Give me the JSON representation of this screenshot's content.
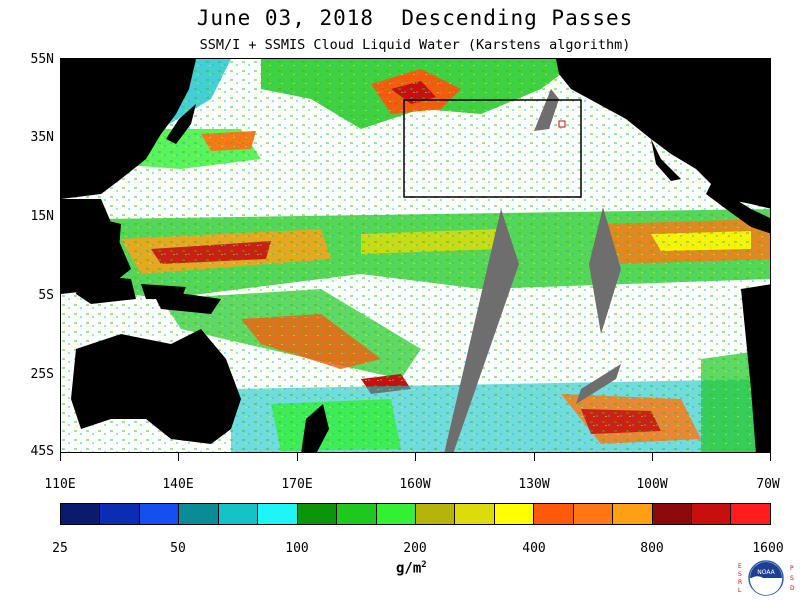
{
  "header": {
    "title": "June 03, 2018  Descending Passes",
    "subtitle": "SSM/I + SSMIS Cloud Liquid Water (Karstens algorithm)"
  },
  "map": {
    "lat_labels": [
      "55N",
      "35N",
      "15N",
      "5S",
      "25S",
      "45S"
    ],
    "lon_labels": [
      "110E",
      "140E",
      "170E",
      "160W",
      "130W",
      "100W",
      "70W"
    ],
    "colors": {
      "land": "#000000",
      "no_data": "#6e6e6e",
      "clear_sky": "#ffffff",
      "box_outline": "#000000"
    }
  },
  "colorbar": {
    "labels": [
      "25",
      "50",
      "100",
      "200",
      "400",
      "800",
      "1600"
    ],
    "colors": [
      "#0a1a6e",
      "#0a2db4",
      "#1450f0",
      "#0a8c96",
      "#14c3c8",
      "#1ef5f5",
      "#0a960a",
      "#1ec81e",
      "#32f032",
      "#b4b40a",
      "#dcdc0a",
      "#ffff00",
      "#ff5a0a",
      "#ff7814",
      "#ffa014",
      "#8c0a0a",
      "#c80f0f",
      "#ff1e1e"
    ],
    "units": "g/m",
    "units_exp": "2"
  },
  "logo": {
    "left_text": [
      "E",
      "S",
      "R",
      "L"
    ],
    "right_text": [
      "P",
      "S",
      "D"
    ],
    "center_text": "NOAA"
  }
}
